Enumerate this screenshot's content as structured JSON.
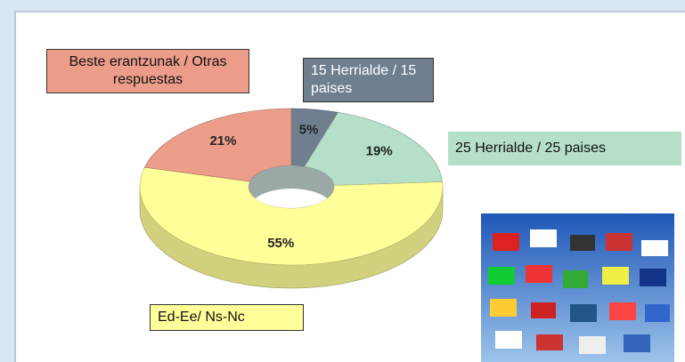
{
  "chart_data": {
    "type": "pie",
    "categories": [
      "15 Herrialde / 15 paises",
      "25 Herrialde / 25 paises",
      "Ed-Ee/ Ns-Nc",
      "Beste erantzunak / Otras respuestas"
    ],
    "values": [
      5,
      19,
      55,
      21
    ],
    "value_labels": [
      "5%",
      "19%",
      "55%",
      "21%"
    ],
    "colors": [
      "#6f7f8f",
      "#b5dfc8",
      "#ffff99",
      "#ec9d8a"
    ]
  }
}
